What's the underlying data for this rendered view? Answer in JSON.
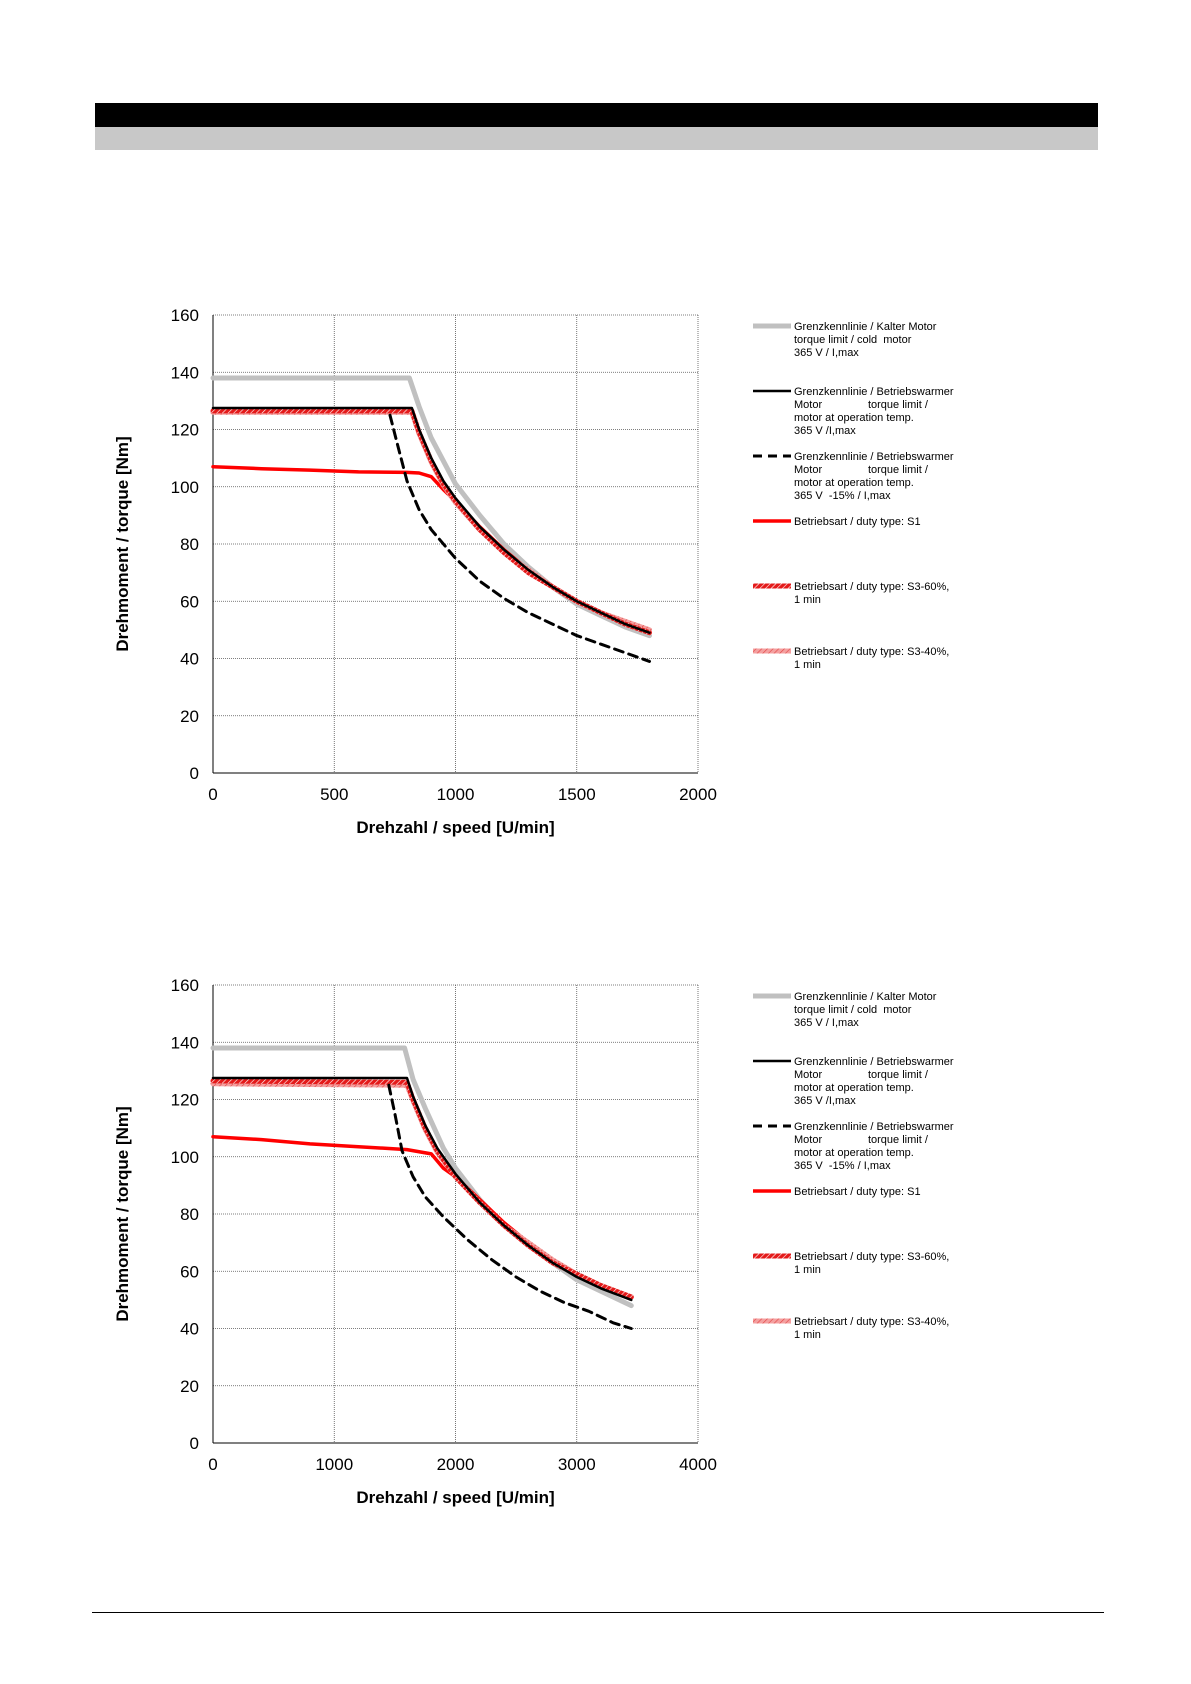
{
  "chart_data": [
    {
      "type": "line",
      "xlabel": "Drehzahl / speed [U/min]",
      "ylabel": "Drehmoment / torque [Nm]",
      "xlim": [
        0,
        2000
      ],
      "ylim": [
        0,
        160
      ],
      "xticks": [
        0,
        500,
        1000,
        1500,
        2000
      ],
      "yticks": [
        0,
        20,
        40,
        60,
        80,
        100,
        120,
        140,
        160
      ],
      "grid": true,
      "legend_position": "right",
      "series": [
        {
          "name": "Grenzkennlinie / Kalter Motor\ntorque limit / cold  motor\n365 V / I,max",
          "color": "#c0c0c0",
          "style": "solid-thick",
          "x": [
            0,
            810,
            850,
            900,
            1000,
            1100,
            1200,
            1300,
            1400,
            1500,
            1600,
            1700,
            1800
          ],
          "y": [
            138,
            138,
            128,
            117,
            101,
            90,
            80,
            72,
            65,
            59,
            55,
            51,
            48
          ]
        },
        {
          "name": "Grenzkennlinie / Betriebswarmer\nMotor               torque limit /\nmotor at operation temp.\n365 V /I,max",
          "color": "#000000",
          "style": "solid",
          "x": [
            0,
            820,
            850,
            900,
            950,
            1000,
            1100,
            1200,
            1300,
            1400,
            1500,
            1600,
            1700,
            1800
          ],
          "y": [
            127.5,
            127.5,
            120,
            110,
            102,
            96,
            86,
            78,
            71,
            65,
            60,
            56,
            52,
            49
          ]
        },
        {
          "name": "Grenzkennlinie / Betriebswarmer\nMotor               torque limit /\nmotor at operation temp.\n365 V  -15% / I,max",
          "color": "#000000",
          "style": "dashed",
          "x": [
            730,
            760,
            800,
            850,
            900,
            1000,
            1100,
            1200,
            1300,
            1400,
            1500,
            1600,
            1700,
            1800
          ],
          "y": [
            125,
            115,
            102,
            92,
            85,
            75,
            67,
            61,
            56,
            52,
            48,
            45,
            42,
            39
          ]
        },
        {
          "name": "Betriebsart / duty type: S1",
          "color": "#ff0000",
          "style": "solid-thick",
          "x": [
            0,
            200,
            400,
            600,
            800,
            850,
            900,
            950,
            1000,
            1100,
            1200,
            1300,
            1400,
            1500,
            1600,
            1700,
            1800
          ],
          "y": [
            107,
            106.3,
            105.8,
            105.2,
            105,
            104.8,
            103.5,
            99,
            95,
            86,
            78,
            71,
            65,
            60,
            56,
            52,
            49
          ]
        },
        {
          "name": "Betriebsart / duty type: S3-60%,\n1 min",
          "color": "#e41a1a",
          "style": "hatched",
          "x": [
            0,
            820,
            850,
            900,
            950,
            1000,
            1100,
            1200,
            1300,
            1400,
            1500,
            1600,
            1700,
            1800
          ],
          "y": [
            126.5,
            126.5,
            119,
            109,
            101,
            95,
            85,
            77,
            70,
            65,
            60,
            56,
            52,
            49
          ]
        },
        {
          "name": "Betriebsart / duty type: S3-40%,\n1 min",
          "color": "#f28080",
          "style": "hatched-light",
          "x": [
            0,
            820,
            850,
            900,
            950,
            1000,
            1100,
            1200,
            1300,
            1400,
            1500,
            1600,
            1700,
            1800
          ],
          "y": [
            126,
            126,
            118.5,
            108.5,
            100.5,
            94.5,
            85,
            77,
            71,
            65,
            60,
            56,
            53,
            50
          ]
        }
      ]
    },
    {
      "type": "line",
      "xlabel": "Drehzahl / speed [U/min]",
      "ylabel": "Drehmoment / torque [Nm]",
      "xlim": [
        0,
        4000
      ],
      "ylim": [
        0,
        160
      ],
      "xticks": [
        0,
        1000,
        2000,
        3000,
        4000
      ],
      "yticks": [
        0,
        20,
        40,
        60,
        80,
        100,
        120,
        140,
        160
      ],
      "grid": true,
      "legend_position": "right",
      "series": [
        {
          "name": "Grenzkennlinie / Kalter Motor\ntorque limit / cold  motor\n365 V / I,max",
          "color": "#c0c0c0",
          "style": "solid-thick",
          "x": [
            0,
            1580,
            1650,
            1750,
            1900,
            2000,
            2200,
            2400,
            2600,
            2800,
            3000,
            3200,
            3450
          ],
          "y": [
            138,
            138,
            127,
            117,
            103,
            96,
            85,
            76,
            69,
            63,
            57,
            53,
            48
          ]
        },
        {
          "name": "Grenzkennlinie / Betriebswarmer\nMotor               torque limit /\nmotor at operation temp.\n365 V /I,max",
          "color": "#000000",
          "style": "solid",
          "x": [
            0,
            1600,
            1650,
            1750,
            1850,
            2000,
            2200,
            2400,
            2600,
            2800,
            3000,
            3200,
            3450
          ],
          "y": [
            127.5,
            127.5,
            121,
            111,
            103,
            94,
            84,
            76,
            69,
            63,
            58,
            54,
            50
          ]
        },
        {
          "name": "Grenzkennlinie / Betriebswarmer\nMotor               torque limit /\nmotor at operation temp.\n365 V  -15% / I,max",
          "color": "#000000",
          "style": "dashed",
          "x": [
            1450,
            1500,
            1560,
            1650,
            1750,
            1900,
            2100,
            2300,
            2500,
            2700,
            2900,
            3100,
            3300,
            3450
          ],
          "y": [
            125,
            115,
            102,
            93,
            86,
            79,
            71,
            64,
            58,
            53,
            49,
            46,
            42,
            40
          ]
        },
        {
          "name": "Betriebsart / duty type: S1",
          "color": "#ff0000",
          "style": "solid-thick",
          "x": [
            0,
            400,
            800,
            1200,
            1600,
            1800,
            1900,
            2000,
            2200,
            2400,
            2600,
            2800,
            3000,
            3200,
            3450
          ],
          "y": [
            107,
            106,
            104.5,
            103.5,
            102.5,
            101,
            96,
            93,
            85,
            77,
            70,
            64,
            59,
            55,
            51
          ]
        },
        {
          "name": "Betriebsart / duty type: S3-60%,\n1 min",
          "color": "#e41a1a",
          "style": "hatched",
          "x": [
            0,
            1600,
            1650,
            1750,
            1850,
            2000,
            2200,
            2400,
            2600,
            2800,
            3000,
            3200,
            3450
          ],
          "y": [
            126.5,
            126,
            120,
            110,
            102,
            93,
            84,
            76,
            69,
            63,
            59,
            55,
            51
          ]
        },
        {
          "name": "Betriebsart / duty type: S3-40%,\n1 min",
          "color": "#f28080",
          "style": "hatched-light",
          "x": [
            0,
            1600,
            1650,
            1750,
            1850,
            2000,
            2200,
            2400,
            2600,
            2800,
            3000,
            3200,
            3450
          ],
          "y": [
            125.5,
            125,
            119.5,
            109.5,
            101.5,
            93,
            84,
            76,
            70,
            64,
            59,
            55,
            51
          ]
        }
      ]
    }
  ]
}
